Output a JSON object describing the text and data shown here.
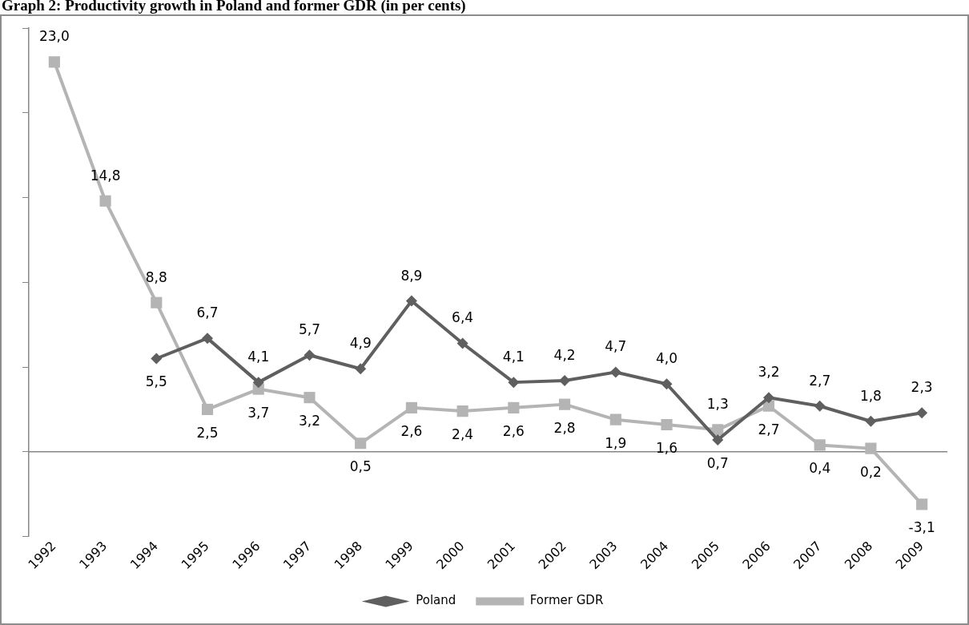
{
  "chart_data": {
    "type": "line",
    "title": "Graph 2: Productivity growth in Poland and former GDR (in per cents)",
    "categories": [
      "1992",
      "1993",
      "1994",
      "1995",
      "1996",
      "1997",
      "1998",
      "1999",
      "2000",
      "2001",
      "2002",
      "2003",
      "2004",
      "2005",
      "2006",
      "2007",
      "2008",
      "2009"
    ],
    "series": [
      {
        "name": "Poland",
        "color": "#5f5f5f",
        "marker": "diamond",
        "values": [
          null,
          null,
          5.5,
          6.7,
          4.1,
          5.7,
          4.9,
          8.9,
          6.4,
          4.1,
          4.2,
          4.7,
          4.0,
          0.7,
          3.2,
          2.7,
          1.8,
          2.3
        ],
        "value_labels": [
          null,
          null,
          "5,5",
          "6,7",
          "4,1",
          "5,7",
          "4,9",
          "8,9",
          "6,4",
          "4,1",
          "4,2",
          "4,7",
          "4,0",
          "0,7",
          "3,2",
          "2,7",
          "1,8",
          "2,3"
        ]
      },
      {
        "name": "Former GDR",
        "color": "#b4b4b4",
        "marker": "square",
        "values": [
          23.0,
          14.8,
          8.8,
          2.5,
          3.7,
          3.2,
          0.5,
          2.6,
          2.4,
          2.6,
          2.8,
          1.9,
          1.6,
          1.3,
          2.7,
          0.4,
          0.2,
          -3.1
        ],
        "value_labels": [
          "23,0",
          "14,8",
          "8,8",
          "2,5",
          "3,7",
          "3,2",
          "0,5",
          "2,6",
          "2,4",
          "2,6",
          "2,8",
          "1,9",
          "1,6",
          "1,3",
          "2,7",
          "0,4",
          "0,2",
          "-3,1"
        ]
      }
    ],
    "ylim": [
      -5,
      25
    ],
    "yticks": [
      {
        "value": -5,
        "label": null
      },
      {
        "value": 0,
        "label": null
      },
      {
        "value": 5,
        "label": null
      },
      {
        "value": 10,
        "label": null
      },
      {
        "value": 15,
        "label": null
      },
      {
        "value": 20,
        "label": null
      },
      {
        "value": 25,
        "label": null
      }
    ],
    "tick_labels": "x",
    "grid": false,
    "legend": "bottom"
  }
}
